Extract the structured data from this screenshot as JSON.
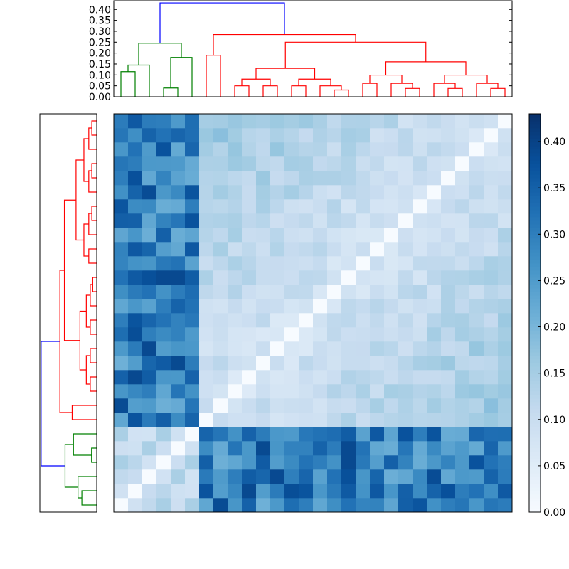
{
  "chart_data": {
    "type": "heatmap",
    "title": "",
    "xlabel": "",
    "ylabel": "",
    "rows": 28,
    "cols": 28,
    "colormap": "Blues",
    "colormap_stops": [
      "#f7fbff",
      "#deebf7",
      "#c6dbef",
      "#9ecae1",
      "#6baed6",
      "#4292c6",
      "#2171b5",
      "#08519c",
      "#08306b"
    ],
    "value_range": [
      0,
      0.43
    ],
    "colorbar": {
      "ticks": [
        "0.00",
        "0.05",
        "0.10",
        "0.15",
        "0.20",
        "0.25",
        "0.30",
        "0.35",
        "0.40"
      ]
    },
    "top_dendrogram_axis": {
      "ylim": [
        0,
        0.44
      ],
      "ticks": [
        "0.00",
        "0.05",
        "0.10",
        "0.15",
        "0.20",
        "0.25",
        "0.30",
        "0.35",
        "0.40"
      ]
    },
    "dendrogram_colors": {
      "root": "#0000ff",
      "cluster_a": "#ff0000",
      "cluster_b": "#008000"
    },
    "cluster_a_size": 22,
    "cluster_b_size": 6,
    "root_height": 0.43,
    "cluster_a_height": 0.285,
    "cluster_b_height": 0.245,
    "approx_block_distances": {
      "within_cluster_a": 0.08,
      "within_cluster_b": 0.12,
      "between_clusters": 0.3
    }
  }
}
